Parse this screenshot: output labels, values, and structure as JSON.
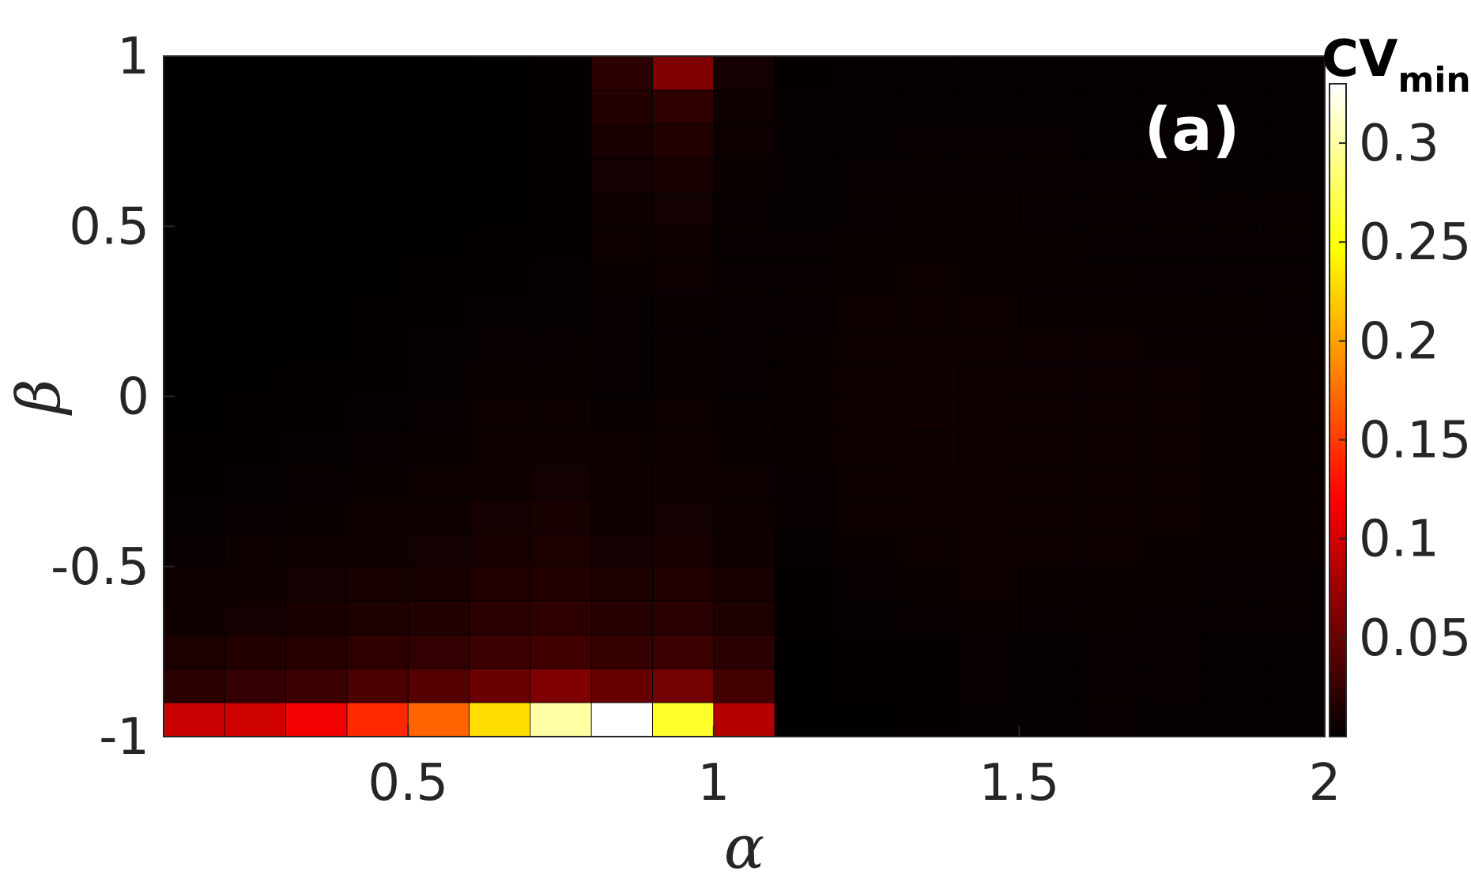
{
  "chart_data": {
    "type": "heatmap",
    "title": "",
    "xlabel": "α",
    "ylabel": "β",
    "panel_label": "(a)",
    "colorbar": {
      "label": "CV",
      "label_subscript": "min",
      "colormap": "hot",
      "range": [
        0,
        0.33
      ],
      "ticks": [
        0.05,
        0.1,
        0.15,
        0.2,
        0.25,
        0.3
      ],
      "tick_labels": [
        "0.05",
        "0.1",
        "0.15",
        "0.2",
        "0.25",
        "0.3"
      ]
    },
    "x_ticks": [
      0.5,
      1,
      1.5,
      2
    ],
    "x_tick_labels": [
      "0.5",
      "1",
      "1.5",
      "2"
    ],
    "y_ticks": [
      -1,
      -0.5,
      0,
      0.5,
      1
    ],
    "y_tick_labels": [
      "-1",
      "-0.5",
      "0",
      "0.5",
      "1"
    ],
    "xlim": [
      0.1,
      2.0
    ],
    "ylim": [
      -1,
      1
    ],
    "x": [
      0.15,
      0.25,
      0.35,
      0.45,
      0.55,
      0.65,
      0.75,
      0.85,
      0.95,
      1.05,
      1.15,
      1.25,
      1.35,
      1.45,
      1.55,
      1.65,
      1.75,
      1.85,
      1.95
    ],
    "y": [
      -0.95,
      -0.85,
      -0.75,
      -0.65,
      -0.55,
      -0.45,
      -0.35,
      -0.25,
      -0.15,
      -0.05,
      0.05,
      0.15,
      0.25,
      0.35,
      0.45,
      0.55,
      0.65,
      0.75,
      0.85,
      0.95
    ],
    "values": [
      [
        0.095,
        0.098,
        0.115,
        0.14,
        0.17,
        0.23,
        0.3,
        0.33,
        0.26,
        0.085,
        0.001,
        0.001,
        0.002,
        0.003,
        0.003,
        0.004,
        0.003,
        0.003,
        0.003
      ],
      [
        0.02,
        0.024,
        0.028,
        0.035,
        0.04,
        0.05,
        0.06,
        0.048,
        0.055,
        0.032,
        0.001,
        0.002,
        0.002,
        0.004,
        0.003,
        0.004,
        0.004,
        0.003,
        0.003
      ],
      [
        0.013,
        0.016,
        0.018,
        0.022,
        0.024,
        0.028,
        0.03,
        0.026,
        0.028,
        0.02,
        0.001,
        0.002,
        0.002,
        0.004,
        0.003,
        0.004,
        0.004,
        0.003,
        0.003
      ],
      [
        0.008,
        0.01,
        0.012,
        0.014,
        0.016,
        0.02,
        0.022,
        0.018,
        0.02,
        0.014,
        0.002,
        0.003,
        0.004,
        0.005,
        0.004,
        0.005,
        0.004,
        0.004,
        0.004
      ],
      [
        0.006,
        0.008,
        0.009,
        0.011,
        0.012,
        0.015,
        0.016,
        0.013,
        0.015,
        0.011,
        0.002,
        0.004,
        0.005,
        0.006,
        0.005,
        0.005,
        0.005,
        0.004,
        0.004
      ],
      [
        0.004,
        0.006,
        0.007,
        0.008,
        0.009,
        0.012,
        0.013,
        0.01,
        0.012,
        0.008,
        0.003,
        0.005,
        0.006,
        0.007,
        0.006,
        0.006,
        0.005,
        0.005,
        0.005
      ],
      [
        0.003,
        0.004,
        0.005,
        0.006,
        0.007,
        0.01,
        0.011,
        0.008,
        0.009,
        0.007,
        0.004,
        0.006,
        0.007,
        0.007,
        0.006,
        0.006,
        0.006,
        0.005,
        0.005
      ],
      [
        0.002,
        0.003,
        0.004,
        0.005,
        0.006,
        0.008,
        0.009,
        0.007,
        0.008,
        0.006,
        0.004,
        0.006,
        0.007,
        0.007,
        0.006,
        0.006,
        0.006,
        0.005,
        0.005
      ],
      [
        0.002,
        0.002,
        0.003,
        0.004,
        0.005,
        0.007,
        0.007,
        0.006,
        0.007,
        0.005,
        0.005,
        0.007,
        0.008,
        0.007,
        0.006,
        0.006,
        0.006,
        0.005,
        0.005
      ],
      [
        0.001,
        0.002,
        0.002,
        0.003,
        0.004,
        0.006,
        0.006,
        0.005,
        0.006,
        0.005,
        0.005,
        0.007,
        0.008,
        0.007,
        0.006,
        0.006,
        0.006,
        0.005,
        0.005
      ],
      [
        0.001,
        0.001,
        0.002,
        0.002,
        0.003,
        0.005,
        0.005,
        0.004,
        0.005,
        0.004,
        0.005,
        0.007,
        0.008,
        0.007,
        0.006,
        0.006,
        0.006,
        0.005,
        0.005
      ],
      [
        0.001,
        0.001,
        0.001,
        0.002,
        0.003,
        0.004,
        0.004,
        0.004,
        0.005,
        0.004,
        0.005,
        0.006,
        0.007,
        0.006,
        0.006,
        0.006,
        0.005,
        0.005,
        0.005
      ],
      [
        0.001,
        0.001,
        0.001,
        0.002,
        0.002,
        0.003,
        0.003,
        0.004,
        0.005,
        0.004,
        0.004,
        0.006,
        0.006,
        0.006,
        0.005,
        0.005,
        0.005,
        0.005,
        0.004
      ],
      [
        0.001,
        0.001,
        0.001,
        0.001,
        0.002,
        0.002,
        0.003,
        0.005,
        0.006,
        0.004,
        0.004,
        0.005,
        0.006,
        0.005,
        0.005,
        0.005,
        0.004,
        0.004,
        0.004
      ],
      [
        0.001,
        0.001,
        0.001,
        0.001,
        0.001,
        0.002,
        0.002,
        0.006,
        0.007,
        0.004,
        0.004,
        0.005,
        0.005,
        0.005,
        0.005,
        0.004,
        0.004,
        0.004,
        0.004
      ],
      [
        0.001,
        0.001,
        0.001,
        0.001,
        0.001,
        0.001,
        0.002,
        0.007,
        0.009,
        0.004,
        0.003,
        0.004,
        0.005,
        0.005,
        0.004,
        0.004,
        0.004,
        0.004,
        0.004
      ],
      [
        0.0,
        0.0,
        0.001,
        0.001,
        0.001,
        0.001,
        0.002,
        0.009,
        0.012,
        0.005,
        0.003,
        0.004,
        0.004,
        0.004,
        0.004,
        0.004,
        0.004,
        0.003,
        0.003
      ],
      [
        0.0,
        0.0,
        0.0,
        0.001,
        0.001,
        0.001,
        0.002,
        0.012,
        0.016,
        0.006,
        0.003,
        0.003,
        0.004,
        0.004,
        0.004,
        0.003,
        0.003,
        0.003,
        0.003
      ],
      [
        0.0,
        0.0,
        0.0,
        0.0,
        0.001,
        0.001,
        0.002,
        0.016,
        0.022,
        0.007,
        0.003,
        0.003,
        0.003,
        0.003,
        0.003,
        0.003,
        0.003,
        0.003,
        0.003
      ],
      [
        0.0,
        0.0,
        0.0,
        0.0,
        0.0,
        0.001,
        0.002,
        0.02,
        0.06,
        0.01,
        0.002,
        0.003,
        0.003,
        0.003,
        0.003,
        0.003,
        0.003,
        0.003,
        0.003
      ]
    ]
  }
}
